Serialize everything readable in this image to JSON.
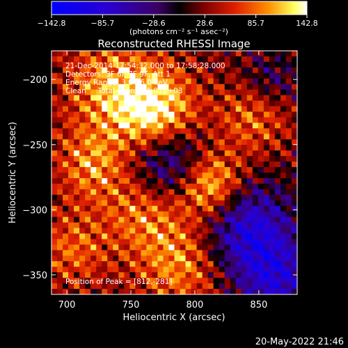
{
  "chart_data": {
    "type": "heatmap",
    "title": "Reconstructed RHESSI Image",
    "xlabel": "Heliocentric X (arcsec)",
    "ylabel": "Heliocentric Y (arcsec)",
    "xlim": [
      688,
      880
    ],
    "ylim": [
      -365,
      -178
    ],
    "x_ticks": [
      700,
      750,
      800,
      850
    ],
    "y_ticks": [
      -200,
      -250,
      -300,
      -350
    ],
    "colorbar": {
      "min": -142.8,
      "max": 142.8,
      "ticks": [
        "-142.8",
        "-85.7",
        "-28.6",
        "28.6",
        "85.7",
        "142.8"
      ],
      "unit_label": "(photons cm⁻² s⁻¹ asec⁻²)"
    },
    "annotations": [
      "21-Dec-2014 17:54:32.000 to 17:58:28.000",
      "Detectors: 3F 6F 7F 9F, Att 1",
      "Energy Range: 3.0 - 6.0 keV",
      "Clean     Total counts: 1.01E+03"
    ],
    "peak_label": "Position of Peak = [812,-281]",
    "peak": [
      812,
      -281
    ],
    "grid": false
  },
  "footer_timestamp": "20-May-2022 21:46",
  "colors": {
    "background": "#000000",
    "text": "#ffffff",
    "cmap_low": "#0000ff",
    "cmap_mid": "#000000",
    "cmap_high": "#ffffff"
  }
}
